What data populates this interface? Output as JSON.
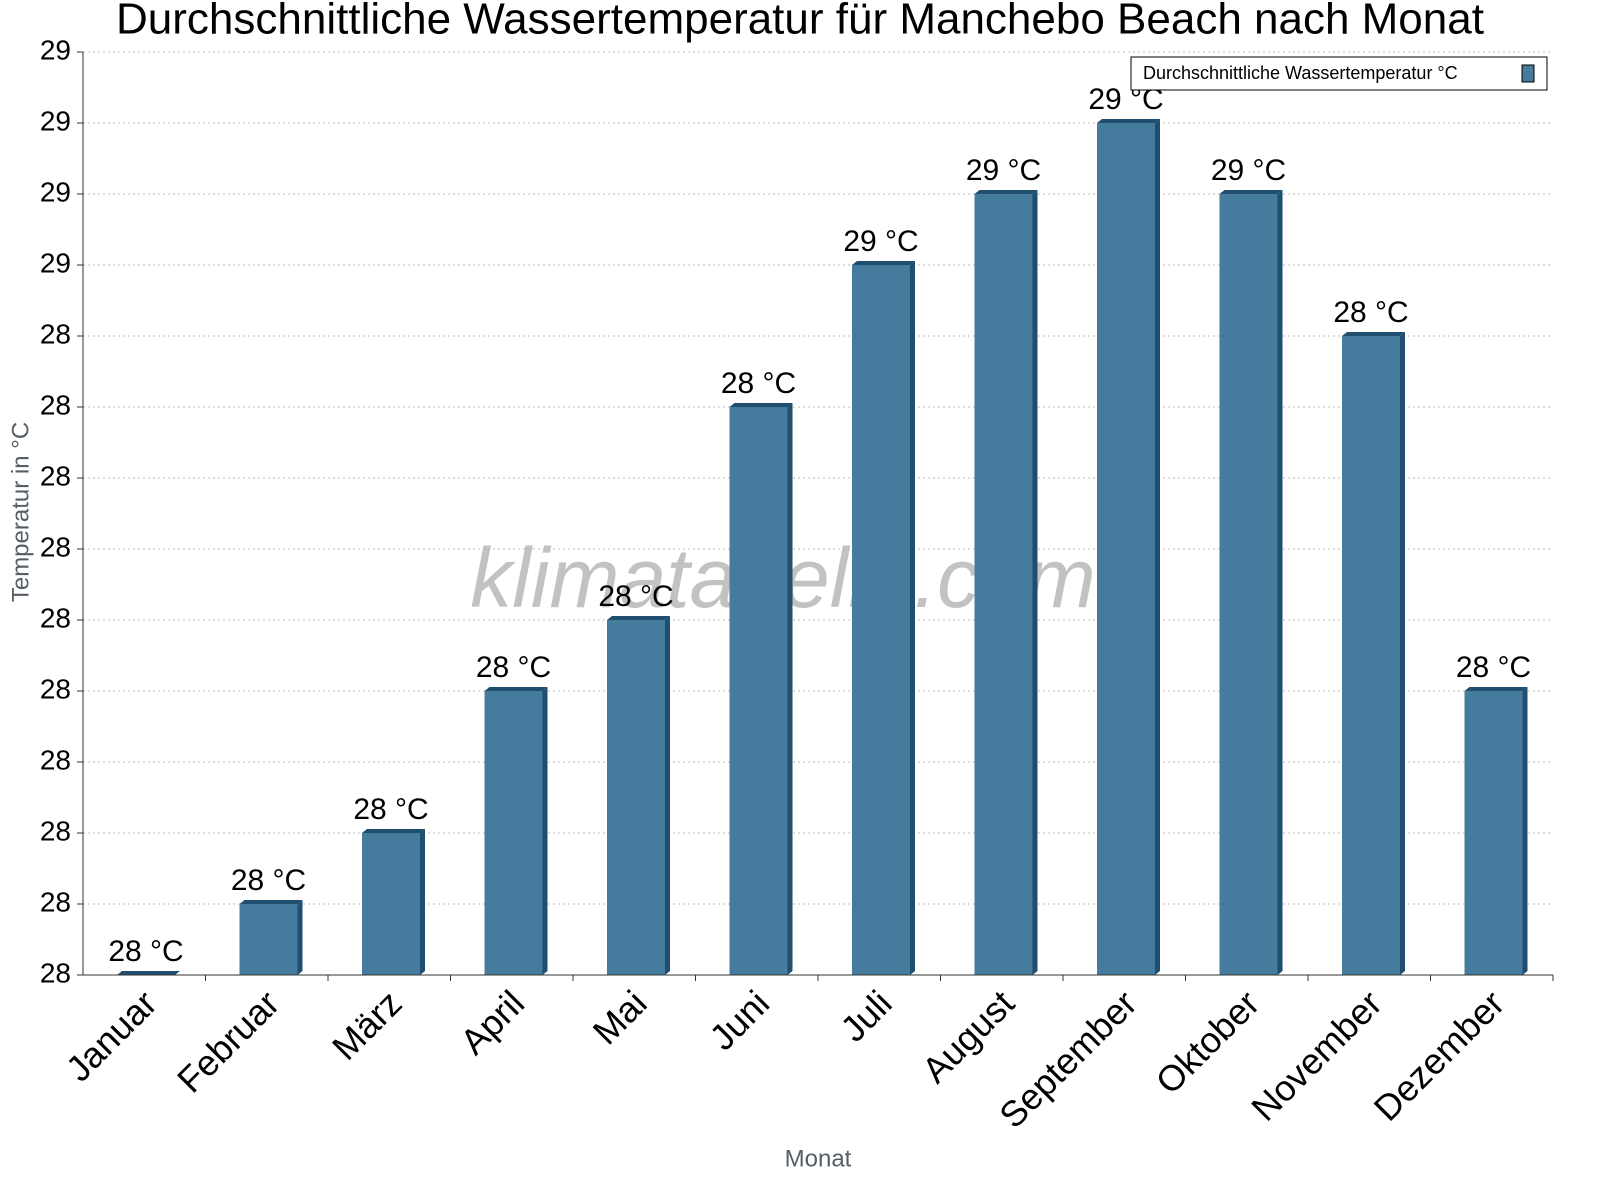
{
  "chart_data": {
    "type": "bar",
    "title": "Durchschnittliche Wassertemperatur für Manchebo Beach nach Monat",
    "x_label": "Monat",
    "y_label": "Temperatur in °C",
    "watermark": "klimatabelle.com",
    "categories": [
      "Januar",
      "Februar",
      "März",
      "April",
      "Mai",
      "Juni",
      "Juli",
      "August",
      "September",
      "Oktober",
      "November",
      "Dezember"
    ],
    "series": [
      {
        "name": "Durchschnittliche Wassertemperatur °C",
        "color": "#457b9d",
        "values": [
          27.5,
          27.6,
          27.7,
          27.9,
          28.0,
          28.3,
          28.5,
          28.6,
          28.7,
          28.6,
          28.4,
          27.9
        ],
        "value_labels": [
          "28 °C",
          "28 °C",
          "28 °C",
          "28 °C",
          "28 °C",
          "28 °C",
          "29 °C",
          "29 °C",
          "29 °C",
          "29 °C",
          "28 °C",
          "28 °C"
        ]
      }
    ],
    "ylim": [
      27.5,
      28.8
    ],
    "yticks": [
      {
        "value": 27.5,
        "label": "28"
      },
      {
        "value": 27.6,
        "label": "28"
      },
      {
        "value": 27.7,
        "label": "28"
      },
      {
        "value": 27.8,
        "label": "28"
      },
      {
        "value": 27.9,
        "label": "28"
      },
      {
        "value": 28.0,
        "label": "28"
      },
      {
        "value": 28.1,
        "label": "28"
      },
      {
        "value": 28.2,
        "label": "28"
      },
      {
        "value": 28.3,
        "label": "28"
      },
      {
        "value": 28.4,
        "label": "28"
      },
      {
        "value": 28.5,
        "label": "29"
      },
      {
        "value": 28.6,
        "label": "29"
      },
      {
        "value": 28.7,
        "label": "29"
      },
      {
        "value": 28.8,
        "label": "29"
      }
    ],
    "grid": true,
    "legend": "top-right"
  }
}
